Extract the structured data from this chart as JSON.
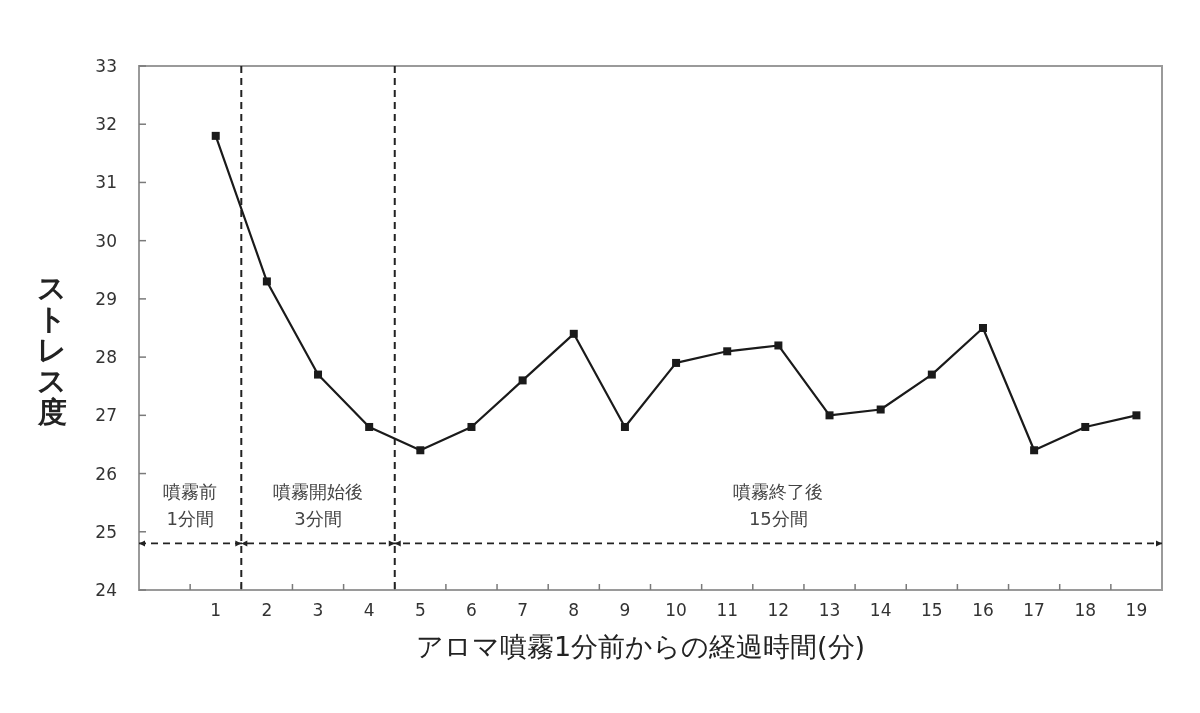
{
  "chart_data": {
    "type": "line",
    "xlabel": "アロマ噴霧1分前からの経過時間(分)",
    "ylabel": "ストレス度",
    "x": [
      1,
      2,
      3,
      4,
      5,
      6,
      7,
      8,
      9,
      10,
      11,
      12,
      13,
      14,
      15,
      16,
      17,
      18,
      19
    ],
    "series": [
      {
        "color": "#1a1a1a",
        "values": [
          31.8,
          29.3,
          27.7,
          26.8,
          26.4,
          26.8,
          27.6,
          28.4,
          26.8,
          27.9,
          28.1,
          28.2,
          27.0,
          27.1,
          27.7,
          28.5,
          26.4,
          26.8,
          27.0
        ]
      }
    ],
    "xlim": [
      -0.5,
      19.5
    ],
    "xticks": [
      {
        "value": 0.5,
        "label": null
      },
      1,
      {
        "value": 1.5,
        "label": null
      },
      2,
      {
        "value": 2.5,
        "label": null
      },
      3,
      {
        "value": 3.5,
        "label": null
      },
      4,
      {
        "value": 4.5,
        "label": null
      },
      5,
      {
        "value": 5.5,
        "label": null
      },
      6,
      {
        "value": 6.5,
        "label": null
      },
      7,
      {
        "value": 7.5,
        "label": null
      },
      8,
      {
        "value": 8.5,
        "label": null
      },
      9,
      {
        "value": 9.5,
        "label": null
      },
      10,
      {
        "value": 10.5,
        "label": null
      },
      11,
      {
        "value": 11.5,
        "label": null
      },
      12,
      {
        "value": 12.5,
        "label": null
      },
      13,
      {
        "value": 13.5,
        "label": null
      },
      14,
      {
        "value": 14.5,
        "label": null
      },
      15,
      {
        "value": 15.5,
        "label": null
      },
      16,
      {
        "value": 16.5,
        "label": null
      },
      17,
      {
        "value": 17.5,
        "label": null
      },
      18,
      {
        "value": 18.5,
        "label": null
      },
      19
    ],
    "ylim": [
      24,
      33
    ],
    "yticks": [
      24,
      25,
      26,
      27,
      28,
      29,
      30,
      31,
      32,
      33
    ],
    "ref_lines": [
      {
        "axis": "x",
        "value": 1.5,
        "color": "#222222",
        "line_style": "dashed"
      },
      {
        "axis": "x",
        "value": 4.5,
        "color": "#222222",
        "line_style": "dashed"
      },
      {
        "axis": "y",
        "value": 24.8,
        "color": "#222222",
        "line_style": "dashed"
      }
    ],
    "annotations": [
      "噴霧前\n1分間",
      "噴霧開始後\n3分間",
      "噴霧終了後\n15分間"
    ],
    "marker": "square",
    "line_style": "solid"
  }
}
